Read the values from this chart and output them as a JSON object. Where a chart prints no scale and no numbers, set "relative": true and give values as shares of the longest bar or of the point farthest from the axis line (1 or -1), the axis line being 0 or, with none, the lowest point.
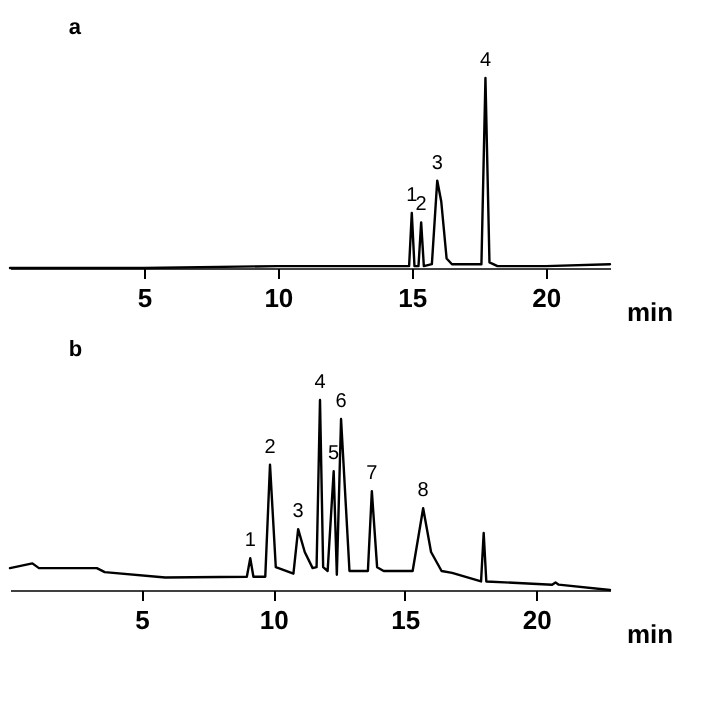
{
  "chart_data": [
    {
      "type": "line",
      "title": "a",
      "xlabel": "min",
      "relative": true,
      "tick_labels": "x",
      "xlim": [
        0,
        22.4
      ],
      "xticks": [
        5,
        10,
        15,
        20
      ],
      "grid": false,
      "legend": false,
      "marker": "none",
      "line_style": "solid",
      "x": [
        0,
        5,
        10,
        14.9,
        15.0,
        15.1,
        15.25,
        15.35,
        15.45,
        15.75,
        15.95,
        16.1,
        16.3,
        16.5,
        17.6,
        17.75,
        17.9,
        18.2,
        20,
        22.4
      ],
      "series": [
        {
          "color": "#000000",
          "values": [
            0,
            0,
            0.01,
            0.01,
            0.29,
            0.01,
            0.01,
            0.24,
            0.01,
            0.02,
            0.46,
            0.35,
            0.05,
            0.02,
            0.02,
            1,
            0.03,
            0.01,
            0.01,
            0.02
          ]
        }
      ],
      "annotations": [
        {
          "text": "1",
          "x": 15.0,
          "y": 0.29
        },
        {
          "text": "2",
          "x": 15.35,
          "y": 0.24
        },
        {
          "text": "3",
          "x": 15.95,
          "y": 0.46
        },
        {
          "text": "4",
          "x": 17.75,
          "y": 1
        }
      ]
    },
    {
      "type": "line",
      "title": "b",
      "xlabel": "min",
      "relative": true,
      "tick_labels": "x",
      "xlim": [
        0,
        22.8
      ],
      "xticks": [
        5,
        10,
        15,
        20
      ],
      "grid": false,
      "legend": false,
      "marker": "none",
      "line_style": "solid",
      "x": [
        0,
        0.85,
        1.1,
        3.3,
        3.6,
        5.9,
        9.0,
        9.13,
        9.25,
        9.7,
        9.88,
        10.1,
        10.77,
        10.95,
        11.2,
        11.5,
        11.65,
        11.78,
        11.9,
        12.07,
        12.3,
        12.42,
        12.58,
        12.9,
        13.6,
        13.75,
        13.95,
        14.2,
        15.3,
        15.7,
        16.0,
        16.4,
        16.8,
        17.9,
        18.0,
        18.1,
        20.6,
        20.73,
        20.85,
        22.8
      ],
      "series": [
        {
          "color": "#000000",
          "values": [
            0.115,
            0.14,
            0.115,
            0.115,
            0.094,
            0.066,
            0.07,
            0.167,
            0.07,
            0.07,
            0.66,
            0.12,
            0.086,
            0.32,
            0.2,
            0.115,
            0.12,
            1,
            0.12,
            0.1,
            0.625,
            0.08,
            0.9,
            0.1,
            0.1,
            0.52,
            0.12,
            0.1,
            0.1,
            0.43,
            0.2,
            0.1,
            0.09,
            0.045,
            0.3,
            0.045,
            0.028,
            0.04,
            0.028,
            0
          ]
        }
      ],
      "annotations": [
        {
          "text": "1",
          "x": 9.13,
          "y": 0.167
        },
        {
          "text": "2",
          "x": 9.88,
          "y": 0.66
        },
        {
          "text": "3",
          "x": 10.95,
          "y": 0.32
        },
        {
          "text": "4",
          "x": 11.78,
          "y": 1
        },
        {
          "text": "5",
          "x": 12.3,
          "y": 0.625
        },
        {
          "text": "6",
          "x": 12.58,
          "y": 0.9
        },
        {
          "text": "7",
          "x": 13.75,
          "y": 0.52
        },
        {
          "text": "8",
          "x": 15.7,
          "y": 0.43
        }
      ]
    }
  ]
}
